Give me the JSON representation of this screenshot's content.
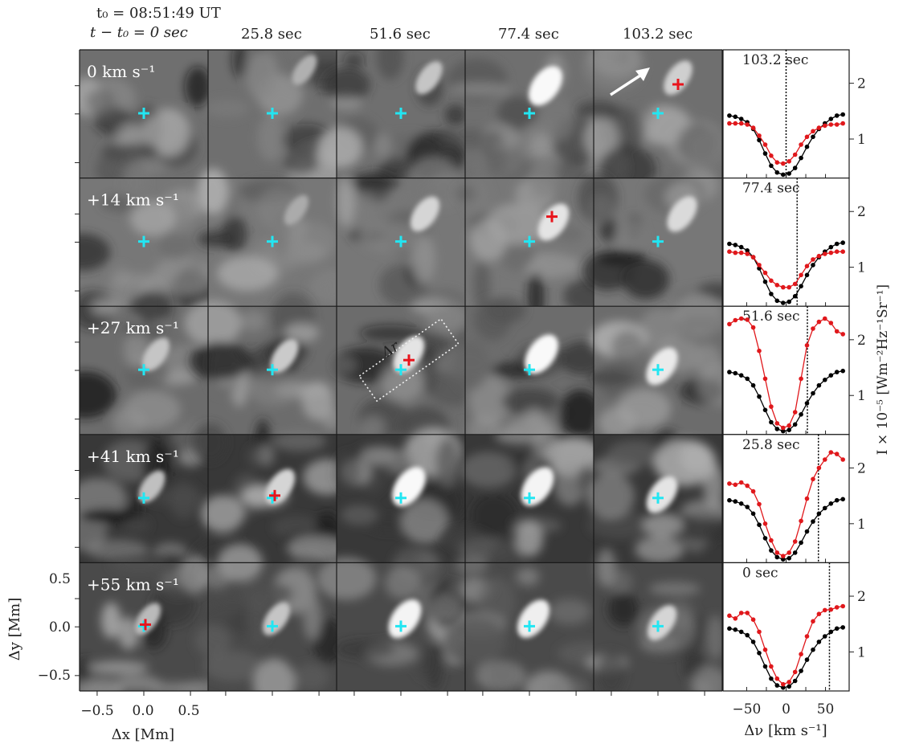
{
  "header": {
    "t0_label": "t₀ = 08:51:49 UT",
    "t_label": "t − t₀ = 0 sec",
    "times": [
      "25.8 sec",
      "51.6 sec",
      "77.4 sec",
      "103.2 sec"
    ]
  },
  "rows": [
    {
      "velocity_label": "0 km s⁻¹"
    },
    {
      "velocity_label": "+14 km s⁻¹"
    },
    {
      "velocity_label": "+27 km s⁻¹"
    },
    {
      "velocity_label": "+41 km s⁻¹"
    },
    {
      "velocity_label": "+55 km s⁻¹"
    }
  ],
  "box_label": "Δr",
  "colors": {
    "cyan_marker": "#22e6f2",
    "red_marker": "#e8141c",
    "profile_black": "#000000",
    "profile_red": "#e0181c"
  },
  "chart_data": [
    {
      "type": "image-grid",
      "title": "",
      "xlabel": "Δx [Mm]",
      "ylabel": "Δy [Mm]",
      "xlim": [
        -0.7,
        0.7
      ],
      "ylim": [
        -0.7,
        0.7
      ],
      "xticks": [
        "−0.5",
        "0.0",
        "0.5"
      ],
      "yticks": [
        "0.5",
        "0.0",
        "−0.5"
      ],
      "columns": [
        "0 sec",
        "25.8 sec",
        "51.6 sec",
        "77.4 sec",
        "103.2 sec"
      ],
      "rows": [
        "0 km s⁻¹",
        "+14 km s⁻¹",
        "+27 km s⁻¹",
        "+41 km s⁻¹",
        "+55 km s⁻¹"
      ]
    },
    {
      "type": "line",
      "xlabel": "Δν [km s⁻¹]",
      "ylabel": "I × 10⁻⁵ [Wm⁻²Hz⁻¹Sr⁻¹]",
      "xlim": [
        -80,
        80
      ],
      "ylim": [
        0.3,
        2.6
      ],
      "xticks": [
        "−50",
        "0",
        "50"
      ],
      "yticks": [
        "1",
        "2"
      ],
      "panels": [
        {
          "label": "103.2 sec",
          "marker_x": 0,
          "black": [
            1.42,
            1.4,
            1.36,
            1.3,
            1.18,
            0.98,
            0.74,
            0.52,
            0.4,
            0.36,
            0.38,
            0.48,
            0.66,
            0.86,
            1.04,
            1.18,
            1.28,
            1.36,
            1.42,
            1.44
          ],
          "red": [
            1.28,
            1.28,
            1.28,
            1.26,
            1.2,
            1.06,
            0.9,
            0.7,
            0.58,
            0.56,
            0.6,
            0.72,
            0.9,
            1.04,
            1.14,
            1.2,
            1.24,
            1.26,
            1.26,
            1.28
          ]
        },
        {
          "label": "77.4 sec",
          "marker_x": 14,
          "black": [
            1.42,
            1.4,
            1.36,
            1.3,
            1.18,
            0.98,
            0.74,
            0.52,
            0.4,
            0.36,
            0.38,
            0.48,
            0.66,
            0.86,
            1.04,
            1.18,
            1.28,
            1.36,
            1.42,
            1.44
          ],
          "red": [
            1.28,
            1.26,
            1.26,
            1.24,
            1.18,
            1.04,
            0.9,
            0.76,
            0.68,
            0.64,
            0.64,
            0.7,
            0.86,
            1.02,
            1.14,
            1.2,
            1.24,
            1.26,
            1.28,
            1.28
          ]
        },
        {
          "label": "51.6 sec",
          "marker_x": 27,
          "black": [
            1.42,
            1.4,
            1.36,
            1.3,
            1.18,
            0.98,
            0.74,
            0.52,
            0.4,
            0.36,
            0.38,
            0.48,
            0.66,
            0.86,
            1.04,
            1.18,
            1.28,
            1.36,
            1.42,
            1.44
          ],
          "red": [
            2.28,
            2.35,
            2.38,
            2.36,
            2.22,
            1.8,
            1.3,
            0.8,
            0.5,
            0.42,
            0.46,
            0.7,
            1.3,
            1.9,
            2.2,
            2.32,
            2.38,
            2.3,
            2.15,
            2.1
          ]
        },
        {
          "label": "25.8 sec",
          "marker_x": 41,
          "black": [
            1.42,
            1.4,
            1.36,
            1.3,
            1.18,
            0.98,
            0.74,
            0.52,
            0.4,
            0.36,
            0.38,
            0.48,
            0.66,
            0.86,
            1.04,
            1.18,
            1.28,
            1.36,
            1.42,
            1.44
          ],
          "red": [
            1.72,
            1.7,
            1.74,
            1.68,
            1.58,
            1.35,
            1.0,
            0.7,
            0.48,
            0.42,
            0.48,
            0.68,
            1.05,
            1.45,
            1.8,
            2.0,
            2.15,
            2.28,
            2.25,
            2.15
          ]
        },
        {
          "label": "0 sec",
          "marker_x": 55,
          "black": [
            1.42,
            1.4,
            1.36,
            1.3,
            1.18,
            0.98,
            0.74,
            0.52,
            0.4,
            0.36,
            0.38,
            0.48,
            0.66,
            0.86,
            1.04,
            1.18,
            1.28,
            1.36,
            1.42,
            1.44
          ],
          "red": [
            1.65,
            1.6,
            1.7,
            1.7,
            1.58,
            1.36,
            1.04,
            0.74,
            0.52,
            0.42,
            0.46,
            0.64,
            0.96,
            1.28,
            1.55,
            1.68,
            1.75,
            1.76,
            1.8,
            1.82
          ]
        }
      ]
    }
  ]
}
